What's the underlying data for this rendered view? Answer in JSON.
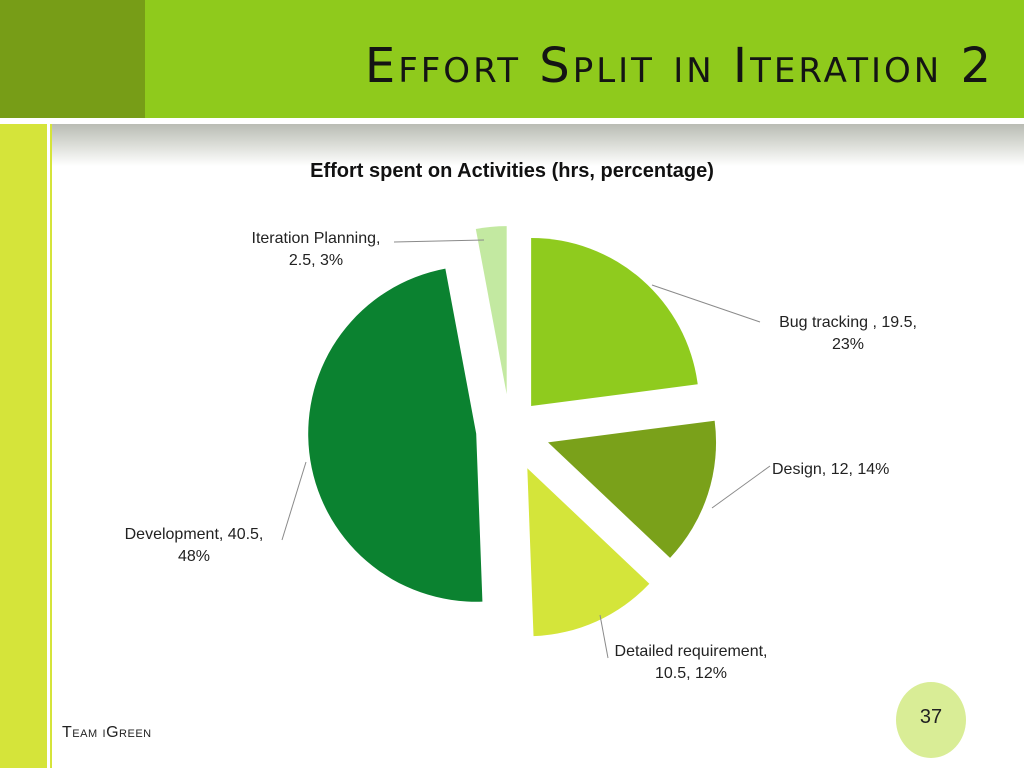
{
  "slide": {
    "title": "Effort Split in Iteration 2",
    "footer": "Team iGreen",
    "page_number": "37"
  },
  "colors": {
    "header": "#8fca1c",
    "header_corner": "#779d17",
    "left_bar": "#d5e43a",
    "page_badge": "#d9ed96"
  },
  "chart_data": {
    "type": "pie",
    "title": "Effort spent on Activities (hrs, percentage)",
    "series": [
      {
        "name": "Bug tracking ",
        "value": 19.5,
        "percent": 23,
        "color": "#8fcb1e",
        "label": "Bug tracking , 19.5, 23%"
      },
      {
        "name": "Design",
        "value": 12,
        "percent": 14,
        "color": "#7aa11a",
        "label": "Design, 12, 14%"
      },
      {
        "name": "Detailed requirement",
        "value": 10.5,
        "percent": 12,
        "color": "#d4e53a",
        "label": "Detailed requirement, 10.5, 12%"
      },
      {
        "name": "Development",
        "value": 40.5,
        "percent": 48,
        "color": "#0b8230",
        "label": "Development, 40.5, 48%"
      },
      {
        "name": "Iteration Planning",
        "value": 2.5,
        "percent": 3,
        "color": "#c3e9a1",
        "label": "Iteration Planning, 2.5, 3%"
      }
    ],
    "legend": "none",
    "exploded": true
  }
}
